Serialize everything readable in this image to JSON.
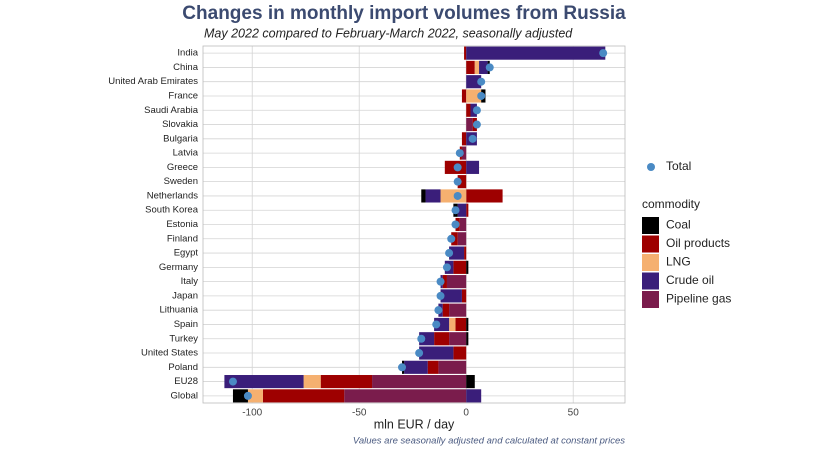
{
  "chart_data": {
    "type": "stacked-bar-horizontal",
    "title": "Changes in monthly import volumes from Russia",
    "subtitle": "May 2022 compared to February-March 2022, seasonally adjusted",
    "xlabel": "mln EUR / day",
    "caption": "Values are seasonally adjusted and calculated at constant prices",
    "legend_title": "commodity",
    "categories": [
      "India",
      "China",
      "United Arab Emirates",
      "France",
      "Saudi Arabia",
      "Slovakia",
      "Bulgaria",
      "Latvia",
      "Greece",
      "Sweden",
      "Netherlands",
      "South Korea",
      "Estonia",
      "Finland",
      "Egypt",
      "Germany",
      "Italy",
      "Japan",
      "Lithuania",
      "Spain",
      "Turkey",
      "United States",
      "Poland",
      "EU28",
      "Global"
    ],
    "series": [
      {
        "name": "Coal",
        "color": "#000000",
        "values": [
          null,
          1,
          null,
          2,
          null,
          null,
          null,
          null,
          null,
          null,
          -2,
          -2,
          null,
          null,
          null,
          1,
          null,
          null,
          null,
          1,
          1,
          null,
          -1,
          4,
          -7
        ]
      },
      {
        "name": "Oil products",
        "color": "#9e0000",
        "values": [
          -1,
          4,
          null,
          -2,
          2,
          2,
          -2,
          -1,
          -10,
          -4,
          17,
          1,
          -2,
          -3,
          -1,
          -6,
          -2,
          -2,
          -3,
          -5,
          -7,
          -6,
          -5,
          -24,
          -38
        ]
      },
      {
        "name": "LNG",
        "color": "#f5b070",
        "values": [
          null,
          2,
          null,
          7,
          null,
          null,
          null,
          null,
          null,
          null,
          -12,
          null,
          null,
          null,
          null,
          null,
          null,
          null,
          null,
          -3,
          null,
          null,
          null,
          -8,
          -7
        ]
      },
      {
        "name": "Crude oil",
        "color": "#3a1e7a",
        "values": [
          65,
          4,
          7,
          null,
          3,
          null,
          5,
          null,
          6,
          null,
          -7,
          -4,
          null,
          null,
          -7,
          -4,
          -1,
          -10,
          -2,
          -7,
          -7,
          -16,
          -11,
          -37,
          7
        ]
      },
      {
        "name": "Pipeline gas",
        "color": "#7a1c4c",
        "values": [
          null,
          null,
          null,
          null,
          null,
          3,
          null,
          -2,
          null,
          null,
          null,
          null,
          -3,
          -4,
          null,
          null,
          -9,
          null,
          -8,
          null,
          -8,
          null,
          -13,
          -44,
          -57
        ]
      }
    ],
    "total": {
      "name": "Total",
      "color": "#4a8ac4",
      "values": [
        64,
        11,
        7,
        7,
        5,
        5,
        3,
        -3,
        -4,
        -4,
        -4,
        -5,
        -5,
        -7,
        -8,
        -9,
        -12,
        -12,
        -13,
        -14,
        -21,
        -22,
        -30,
        -109,
        -102
      ]
    },
    "xlim": [
      -123,
      74.2
    ],
    "xticks": [
      -100,
      -50,
      0,
      50
    ],
    "grid": true
  }
}
